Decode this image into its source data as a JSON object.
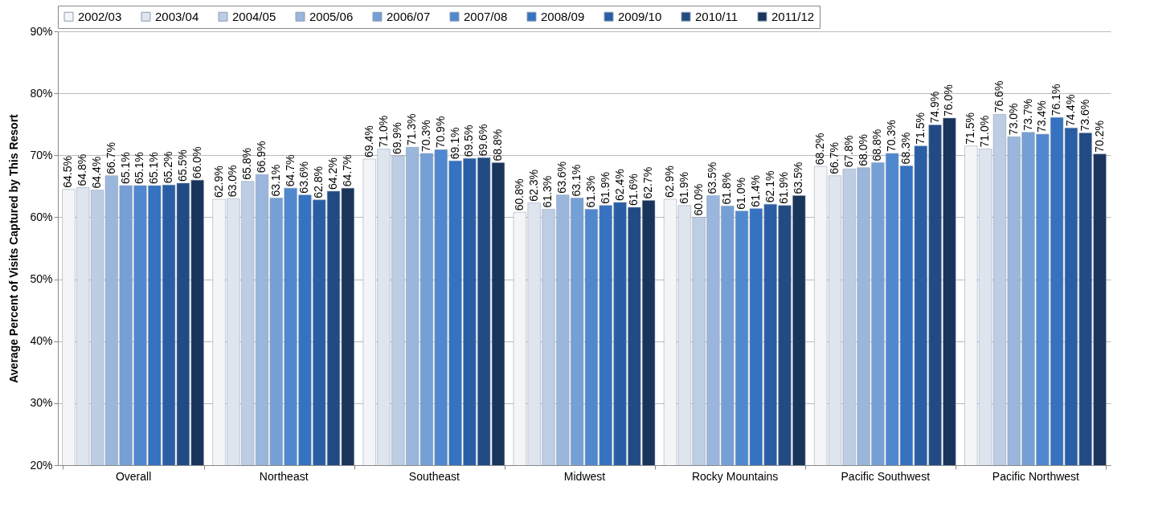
{
  "chart_data": {
    "type": "bar",
    "ylabel": "Average Percent of Visits Captured by This Resort",
    "categories": [
      "Overall",
      "Northeast",
      "Southeast",
      "Midwest",
      "Rocky Mountains",
      "Pacific Southwest",
      "Pacific Northwest"
    ],
    "ylim": [
      20,
      90
    ],
    "yticks": [
      {
        "value": 20,
        "label": "20%"
      },
      {
        "value": 30,
        "label": "30%"
      },
      {
        "value": 40,
        "label": "40%"
      },
      {
        "value": 50,
        "label": "50%"
      },
      {
        "value": 60,
        "label": "60%"
      },
      {
        "value": 70,
        "label": "70%"
      },
      {
        "value": 80,
        "label": "80%"
      },
      {
        "value": 90,
        "label": "90%"
      }
    ],
    "grid": "y",
    "legend": "top",
    "series": [
      {
        "name": "2002/03",
        "color": "#f4f5f7",
        "values": [
          64.5,
          62.9,
          69.4,
          60.8,
          62.9,
          68.2,
          71.5
        ],
        "value_labels": [
          "64.5%",
          "62.9%",
          "69.4%",
          "60.8%",
          "62.9%",
          "68.2%",
          "71.5%"
        ]
      },
      {
        "name": "2003/04",
        "color": "#dfe5ee",
        "values": [
          64.8,
          63.0,
          71.0,
          62.3,
          61.9,
          66.7,
          71.0
        ],
        "value_labels": [
          "64.8%",
          "63.0%",
          "71.0%",
          "62.3%",
          "61.9%",
          "66.7%",
          "71.0%"
        ]
      },
      {
        "name": "2004/05",
        "color": "#bccde4",
        "values": [
          64.4,
          65.8,
          69.9,
          61.3,
          60.0,
          67.8,
          76.6
        ],
        "value_labels": [
          "64.4%",
          "65.8%",
          "69.9%",
          "61.3%",
          "60.0%",
          "67.8%",
          "76.6%"
        ]
      },
      {
        "name": "2005/06",
        "color": "#9ab6dc",
        "values": [
          66.7,
          66.9,
          71.3,
          63.6,
          63.5,
          68.0,
          73.0
        ],
        "value_labels": [
          "66.7%",
          "66.9%",
          "71.3%",
          "63.6%",
          "63.5%",
          "68.0%",
          "73.0%"
        ]
      },
      {
        "name": "2006/07",
        "color": "#75a0d6",
        "values": [
          65.1,
          63.1,
          70.3,
          63.1,
          61.8,
          68.8,
          73.7
        ],
        "value_labels": [
          "65.1%",
          "63.1%",
          "70.3%",
          "63.1%",
          "61.8%",
          "68.8%",
          "73.7%"
        ]
      },
      {
        "name": "2007/08",
        "color": "#5088cf",
        "values": [
          65.1,
          64.7,
          70.9,
          61.3,
          61.0,
          70.3,
          73.4
        ],
        "value_labels": [
          "65.1%",
          "64.7%",
          "70.9%",
          "61.3%",
          "61.0%",
          "70.3%",
          "73.4%"
        ]
      },
      {
        "name": "2008/09",
        "color": "#3572c0",
        "values": [
          65.1,
          63.6,
          69.1,
          61.9,
          61.4,
          68.3,
          76.1
        ],
        "value_labels": [
          "65.1%",
          "63.6%",
          "69.1%",
          "61.9%",
          "61.4%",
          "68.3%",
          "76.1%"
        ]
      },
      {
        "name": "2009/10",
        "color": "#2a5ea4",
        "values": [
          65.2,
          62.8,
          69.5,
          62.4,
          62.1,
          71.5,
          74.4
        ],
        "value_labels": [
          "65.2%",
          "62.8%",
          "69.5%",
          "62.4%",
          "62.1%",
          "71.5%",
          "74.4%"
        ]
      },
      {
        "name": "2010/11",
        "color": "#224b83",
        "values": [
          65.5,
          64.2,
          69.6,
          61.6,
          61.9,
          74.9,
          73.6
        ],
        "value_labels": [
          "65.5%",
          "64.2%",
          "69.6%",
          "61.6%",
          "61.9%",
          "74.9%",
          "73.6%"
        ]
      },
      {
        "name": "2011/12",
        "color": "#1a355c",
        "values": [
          66.0,
          64.7,
          68.8,
          62.7,
          63.5,
          76.0,
          70.2
        ],
        "value_labels": [
          "66.0%",
          "64.7%",
          "68.8%",
          "62.7%",
          "63.5%",
          "76.0%",
          "70.2%"
        ]
      }
    ]
  }
}
